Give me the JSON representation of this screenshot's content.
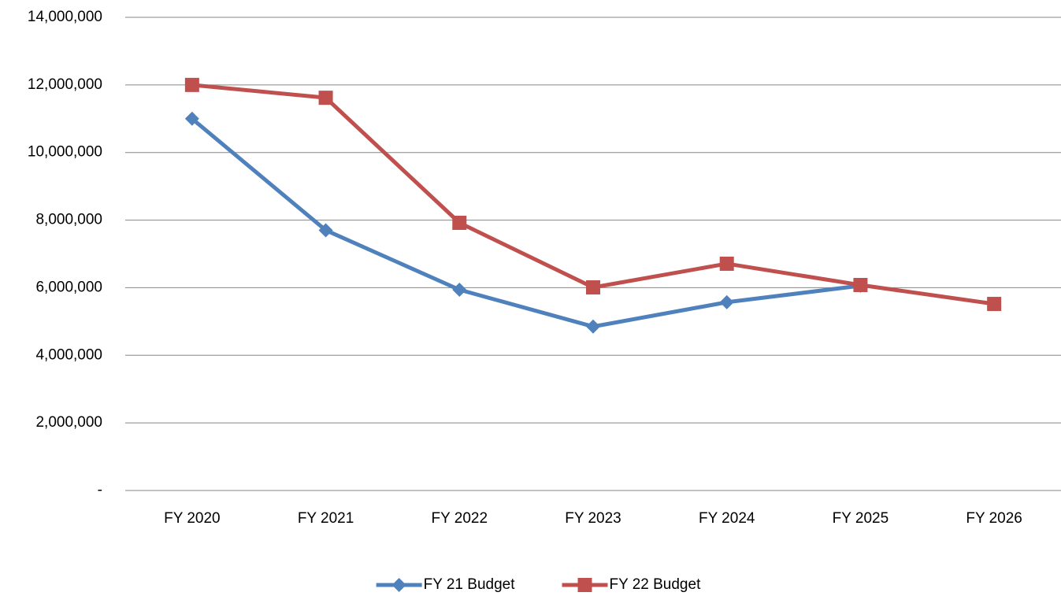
{
  "chart_data": {
    "type": "line",
    "categories": [
      "FY 2020",
      "FY 2021",
      "FY 2022",
      "FY 2023",
      "FY 2024",
      "FY 2025",
      "FY 2026"
    ],
    "series": [
      {
        "name": "FY 21 Budget",
        "color": "#4f81bd",
        "marker": "diamond",
        "values": [
          11000000,
          7700000,
          5940000,
          4850000,
          5570000,
          6060000,
          null
        ]
      },
      {
        "name": "FY 22 Budget",
        "color": "#c0504d",
        "marker": "square",
        "values": [
          12000000,
          11620000,
          7920000,
          6010000,
          6710000,
          6080000,
          5520000
        ]
      }
    ],
    "ylim": [
      0,
      14000000
    ],
    "yticks": [
      {
        "value": 0,
        "label": "-"
      },
      {
        "value": 2000000,
        "label": "2,000,000"
      },
      {
        "value": 4000000,
        "label": "4,000,000"
      },
      {
        "value": 6000000,
        "label": "6,000,000"
      },
      {
        "value": 8000000,
        "label": "8,000,000"
      },
      {
        "value": 10000000,
        "label": "10,000,000"
      },
      {
        "value": 12000000,
        "label": "12,000,000"
      },
      {
        "value": 14000000,
        "label": "14,000,000"
      }
    ],
    "grid": true,
    "legend": "bottom"
  }
}
